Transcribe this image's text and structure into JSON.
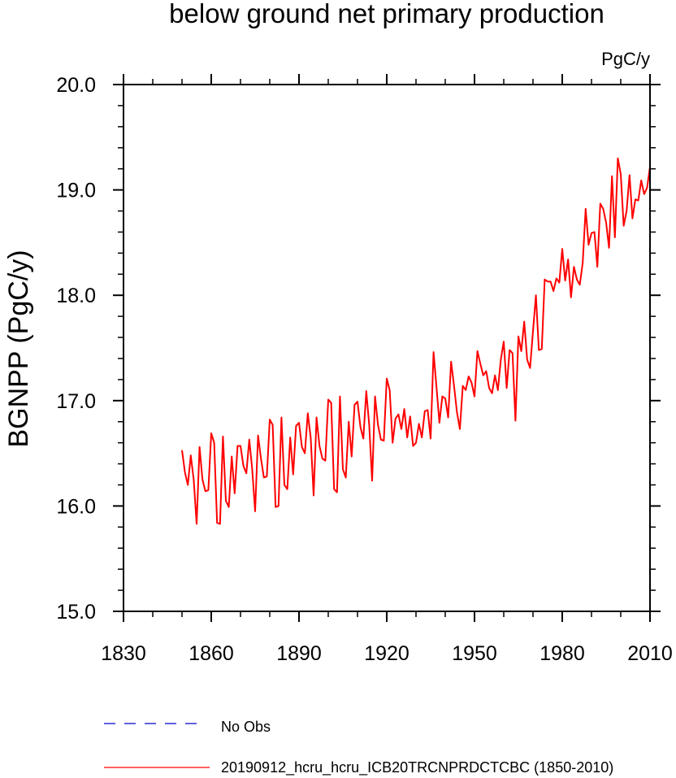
{
  "chart_data": {
    "type": "line",
    "title": "below ground net primary production",
    "units": "PgC/y",
    "xlabel": "",
    "ylabel": "BGNPP  (PgC/y)",
    "xlim": [
      1830,
      2010
    ],
    "ylim": [
      15.0,
      20.0
    ],
    "x_ticks": [
      1830,
      1860,
      1890,
      1920,
      1950,
      1980,
      2010
    ],
    "y_ticks": [
      15.0,
      16.0,
      17.0,
      18.0,
      19.0,
      20.0
    ],
    "y_tick_labels": [
      "15.0",
      "16.0",
      "17.0",
      "18.0",
      "19.0",
      "20.0"
    ],
    "series": [
      {
        "name": "20190912_hcru_hcru_ICB20TRCNPRDCTCBC (1850-2010)",
        "color": "#ff0000",
        "x_start": 1850,
        "x_step": 1,
        "values": [
          16.53,
          16.32,
          16.2,
          16.48,
          16.25,
          15.83,
          16.56,
          16.25,
          16.14,
          16.15,
          16.69,
          16.6,
          15.84,
          15.83,
          16.66,
          16.05,
          15.99,
          16.47,
          16.12,
          16.57,
          16.57,
          16.38,
          16.31,
          16.63,
          16.35,
          15.95,
          16.67,
          16.45,
          16.27,
          16.28,
          16.82,
          16.77,
          15.99,
          16.0,
          16.84,
          16.2,
          16.16,
          16.65,
          16.3,
          16.76,
          16.79,
          16.56,
          16.5,
          16.88,
          16.65,
          16.1,
          16.84,
          16.57,
          16.45,
          16.43,
          17.01,
          16.98,
          16.16,
          16.13,
          17.04,
          16.35,
          16.27,
          16.8,
          16.47,
          16.96,
          16.99,
          16.75,
          16.64,
          17.09,
          16.77,
          16.24,
          17.04,
          16.77,
          16.63,
          16.62,
          17.21,
          17.1,
          16.6,
          16.83,
          16.87,
          16.73,
          16.92,
          16.65,
          16.85,
          16.57,
          16.6,
          16.78,
          16.65,
          16.9,
          16.91,
          16.64,
          17.46,
          17.13,
          16.79,
          17.04,
          17.02,
          16.84,
          17.37,
          17.14,
          16.89,
          16.73,
          17.14,
          17.1,
          17.23,
          17.17,
          17.04,
          17.47,
          17.35,
          17.24,
          17.28,
          17.12,
          17.07,
          17.24,
          17.1,
          17.39,
          17.56,
          17.12,
          17.48,
          17.45,
          16.81,
          17.61,
          17.47,
          17.75,
          17.39,
          17.31,
          17.66,
          18.0,
          17.48,
          17.49,
          18.15,
          18.13,
          18.13,
          18.04,
          18.16,
          18.12,
          18.44,
          18.14,
          18.34,
          17.98,
          18.27,
          18.15,
          18.1,
          18.31,
          18.82,
          18.48,
          18.59,
          18.6,
          18.27,
          18.87,
          18.82,
          18.69,
          18.45,
          19.13,
          18.55,
          19.3,
          19.15,
          18.66,
          18.8,
          19.14,
          18.73,
          18.91,
          18.9,
          19.09,
          18.96,
          19.02,
          19.22
        ]
      }
    ],
    "legend": [
      {
        "label": "No Obs",
        "color": "#0000cc",
        "style": "dashed"
      },
      {
        "label": "20190912_hcru_hcru_ICB20TRCNPRDCTCBC (1850-2010)",
        "color": "#ff0000",
        "style": "solid"
      }
    ]
  }
}
